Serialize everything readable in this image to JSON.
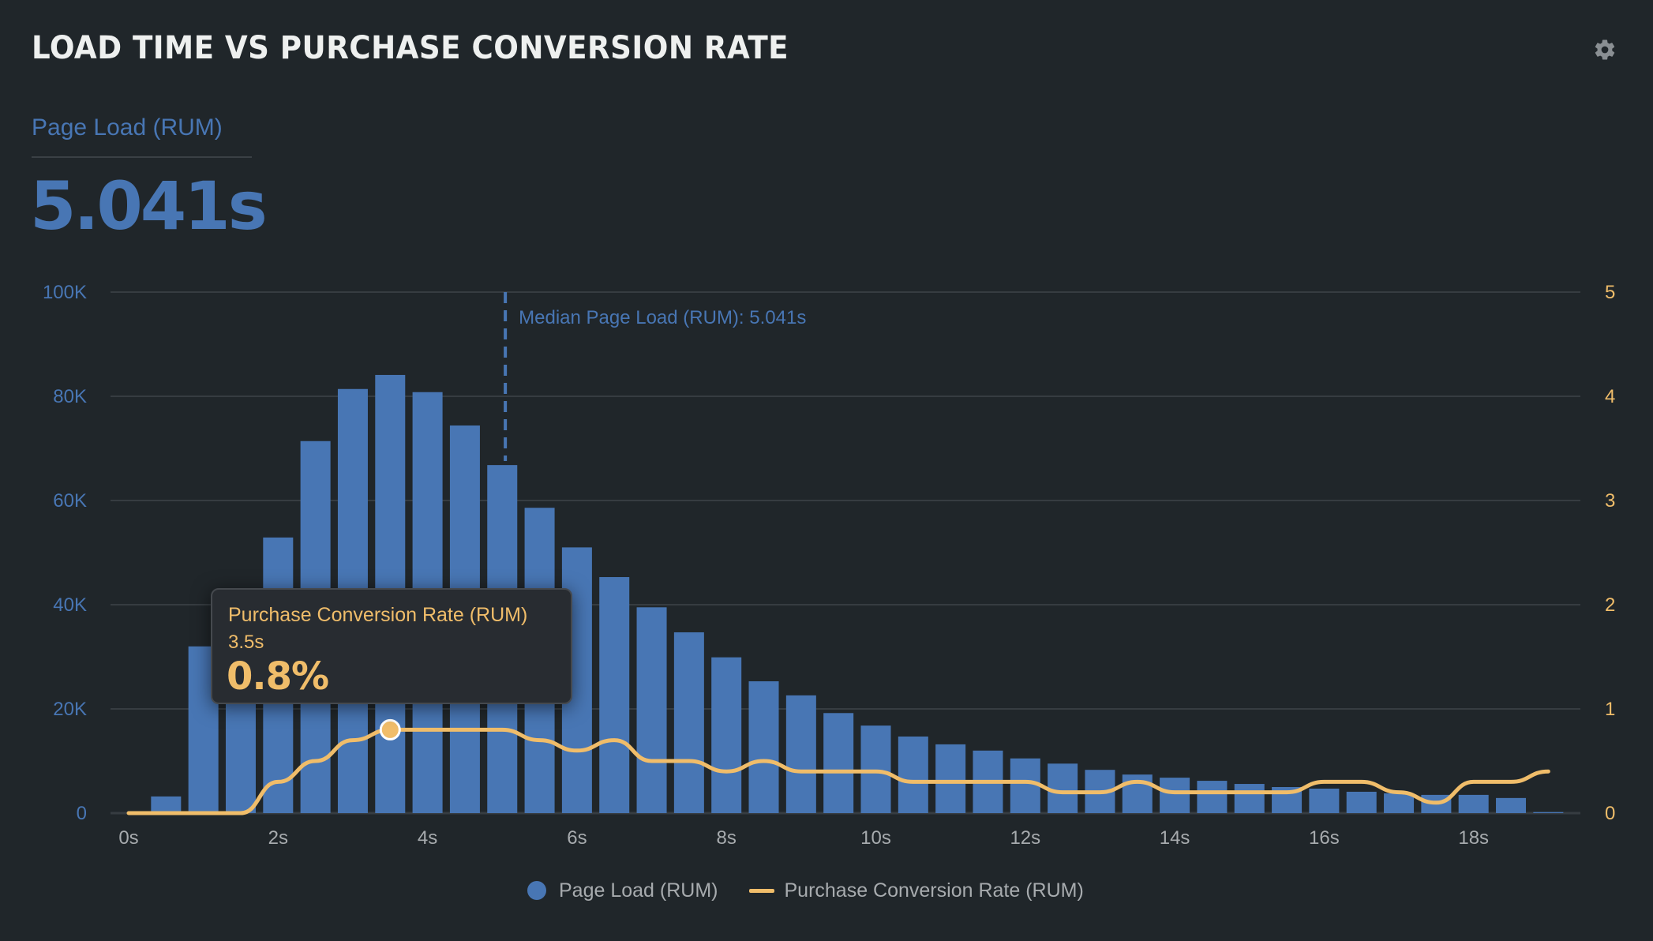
{
  "header": {
    "title": "LOAD TIME VS PURCHASE CONVERSION RATE",
    "settings_icon": "gear-icon"
  },
  "metric": {
    "label": "Page Load (RUM)",
    "value": "5.041s"
  },
  "colors": {
    "page_load": "#4876b4",
    "conversion": "#f0bd6a",
    "background": "#20262a",
    "gridline": "#363c41",
    "axis_text": "#a7abae"
  },
  "tooltip": {
    "series": "Purchase Conversion Rate (RUM)",
    "x": "3.5s",
    "value": "0.8%"
  },
  "legend": [
    {
      "label": "Page Load (RUM)",
      "marker": "dot"
    },
    {
      "label": "Purchase Conversion Rate (RUM)",
      "marker": "line"
    }
  ],
  "chart_data": {
    "type": "bar",
    "title": "LOAD TIME VS PURCHASE CONVERSION RATE",
    "xlabel": "",
    "ylabel": "",
    "x_ticks": [
      "0s",
      "2s",
      "4s",
      "6s",
      "8s",
      "10s",
      "12s",
      "14s",
      "16s",
      "18s"
    ],
    "x_tick_values": [
      0,
      2,
      4,
      6,
      8,
      10,
      12,
      14,
      16,
      18
    ],
    "xlim": [
      0,
      19.7
    ],
    "y_left": {
      "ticks": [
        "0",
        "20K",
        "40K",
        "60K",
        "80K",
        "100K"
      ],
      "tick_values": [
        0,
        20000,
        40000,
        60000,
        80000,
        100000
      ],
      "ylim": [
        0,
        100000
      ]
    },
    "y_right": {
      "ticks": [
        "0",
        "1",
        "2",
        "3",
        "4",
        "5"
      ],
      "tick_values": [
        0,
        1,
        2,
        3,
        4,
        5
      ],
      "ylim": [
        0,
        5
      ]
    },
    "grid": true,
    "legend_position": "bottom-center",
    "annotation": {
      "label": "Median Page Load (RUM): 5.041s",
      "x": 5.041
    },
    "series": [
      {
        "name": "Page Load (RUM)",
        "type": "bar",
        "axis": "left",
        "x": [
          0.5,
          1,
          1.5,
          2,
          2.5,
          3,
          3.5,
          4,
          4.5,
          5,
          5.5,
          6,
          6.5,
          7,
          7.5,
          8,
          8.5,
          9,
          9.5,
          10,
          10.5,
          11,
          11.5,
          12,
          12.5,
          13,
          13.5,
          14,
          14.5,
          15,
          15.5,
          16,
          16.5,
          17,
          17.5,
          18,
          18.5,
          19
        ],
        "values": [
          3200,
          32000,
          41000,
          52900,
          71400,
          81400,
          84100,
          80800,
          74400,
          66800,
          58600,
          51000,
          45300,
          39500,
          34700,
          29900,
          25300,
          22600,
          19200,
          16800,
          14700,
          13200,
          12000,
          10500,
          9500,
          8300,
          7400,
          6800,
          6200,
          5600,
          5000,
          4700,
          4100,
          3800,
          3500,
          3500,
          2900,
          200
        ]
      },
      {
        "name": "Purchase Conversion Rate (RUM)",
        "type": "line",
        "axis": "right",
        "unit": "%",
        "x": [
          0,
          0.5,
          1,
          1.5,
          2,
          2.5,
          3,
          3.5,
          4,
          4.5,
          5,
          5.5,
          6,
          6.5,
          7,
          7.5,
          8,
          8.5,
          9,
          9.5,
          10,
          10.5,
          11,
          11.5,
          12,
          12.5,
          13,
          13.5,
          14,
          14.5,
          15,
          15.5,
          16,
          16.5,
          17,
          17.5,
          18,
          18.5,
          19
        ],
        "values": [
          0,
          0,
          0,
          0,
          0.3,
          0.5,
          0.7,
          0.8,
          0.8,
          0.8,
          0.8,
          0.7,
          0.6,
          0.7,
          0.5,
          0.5,
          0.4,
          0.5,
          0.4,
          0.4,
          0.4,
          0.3,
          0.3,
          0.3,
          0.3,
          0.2,
          0.2,
          0.3,
          0.2,
          0.2,
          0.2,
          0.2,
          0.3,
          0.3,
          0.2,
          0.1,
          0.3,
          0.3,
          0.4
        ]
      }
    ],
    "highlighted_point": {
      "series": "Purchase Conversion Rate (RUM)",
      "x": 3.5,
      "value": 0.8
    }
  }
}
